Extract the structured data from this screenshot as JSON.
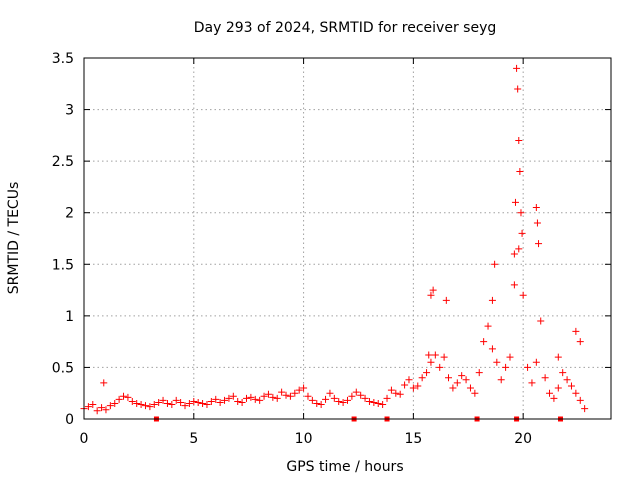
{
  "chart_data": {
    "type": "scatter",
    "title": "Day 293 of 2024, SRMTID for receiver seyg",
    "xlabel": "GPS time / hours",
    "ylabel": "SRMTID / TECUs",
    "xlim": [
      0,
      24
    ],
    "ylim": [
      0,
      3.5
    ],
    "x_ticks": [
      0,
      5,
      10,
      15,
      20
    ],
    "x_tick_labels": [
      "0",
      "5",
      "10",
      "15",
      "20"
    ],
    "y_ticks": [
      0,
      0.5,
      1,
      1.5,
      2,
      2.5,
      3,
      3.5
    ],
    "y_tick_labels": [
      "0",
      "0.5",
      "1",
      "1.5",
      "2",
      "2.5",
      "3",
      "3.5"
    ],
    "grid": true,
    "marker": "+",
    "color": "#ff0000",
    "series": [
      {
        "name": "SRMTID",
        "x": [
          0.0,
          0.2,
          0.4,
          0.6,
          0.8,
          1.0,
          1.2,
          1.4,
          1.6,
          1.8,
          2.0,
          2.2,
          2.4,
          2.6,
          2.8,
          3.0,
          3.2,
          3.4,
          3.6,
          3.8,
          4.0,
          4.2,
          4.4,
          4.6,
          4.8,
          5.0,
          5.2,
          5.4,
          5.6,
          5.8,
          6.0,
          6.2,
          6.4,
          6.6,
          6.8,
          7.0,
          7.2,
          7.4,
          7.6,
          7.8,
          8.0,
          8.2,
          8.4,
          8.6,
          8.8,
          9.0,
          9.2,
          9.4,
          9.6,
          9.8,
          10.0,
          10.2,
          10.4,
          10.6,
          10.8,
          11.0,
          11.2,
          11.4,
          11.6,
          11.8,
          12.0,
          12.2,
          12.4,
          12.6,
          12.8,
          13.0,
          13.2,
          13.4,
          13.6,
          13.8,
          14.0,
          14.2,
          14.4,
          14.6,
          14.8,
          15.0,
          15.2,
          15.4,
          15.6,
          15.8,
          16.0,
          16.2,
          16.4,
          16.6,
          16.8,
          17.0,
          17.2,
          17.4,
          17.6,
          17.8,
          18.0,
          18.2,
          18.4,
          18.6,
          18.8,
          19.0,
          19.2,
          19.4,
          19.6,
          19.8,
          20.0,
          20.2,
          20.4,
          20.6,
          20.8,
          21.0,
          21.2,
          21.4,
          21.6,
          21.8,
          22.0,
          22.2,
          22.4,
          22.6,
          22.8,
          0.9,
          15.7,
          15.8,
          15.9,
          16.5,
          18.6,
          18.7,
          19.6,
          19.65,
          19.7,
          19.75,
          19.8,
          19.85,
          19.9,
          19.95,
          20.6,
          20.65,
          20.7,
          21.6,
          22.4,
          22.6
        ],
        "y": [
          0.1,
          0.12,
          0.14,
          0.08,
          0.11,
          0.09,
          0.13,
          0.15,
          0.19,
          0.22,
          0.21,
          0.17,
          0.15,
          0.14,
          0.13,
          0.12,
          0.14,
          0.16,
          0.18,
          0.15,
          0.14,
          0.18,
          0.16,
          0.13,
          0.15,
          0.17,
          0.16,
          0.15,
          0.14,
          0.17,
          0.19,
          0.16,
          0.18,
          0.2,
          0.22,
          0.17,
          0.16,
          0.2,
          0.21,
          0.19,
          0.18,
          0.22,
          0.24,
          0.21,
          0.2,
          0.26,
          0.23,
          0.22,
          0.25,
          0.28,
          0.3,
          0.22,
          0.18,
          0.15,
          0.14,
          0.19,
          0.25,
          0.2,
          0.17,
          0.16,
          0.18,
          0.22,
          0.26,
          0.23,
          0.2,
          0.17,
          0.16,
          0.15,
          0.14,
          0.2,
          0.28,
          0.25,
          0.24,
          0.33,
          0.38,
          0.3,
          0.32,
          0.4,
          0.45,
          0.55,
          0.62,
          0.5,
          0.6,
          0.4,
          0.3,
          0.35,
          0.42,
          0.38,
          0.3,
          0.25,
          0.45,
          0.75,
          0.9,
          1.15,
          0.55,
          0.38,
          0.5,
          0.6,
          1.3,
          1.65,
          1.2,
          0.5,
          0.35,
          0.55,
          0.95,
          0.4,
          0.25,
          0.2,
          0.3,
          0.45,
          0.38,
          0.32,
          0.25,
          0.18,
          0.1,
          0.35,
          0.62,
          1.2,
          1.25,
          1.15,
          0.68,
          1.5,
          1.6,
          2.1,
          3.4,
          3.2,
          2.7,
          2.4,
          2.0,
          1.8,
          2.05,
          1.9,
          1.7,
          0.6,
          0.85,
          0.75
        ]
      }
    ],
    "baseline_markers": [
      {
        "x": 3.3,
        "y": 0
      },
      {
        "x": 12.3,
        "y": 0
      },
      {
        "x": 13.8,
        "y": 0
      },
      {
        "x": 17.9,
        "y": 0
      },
      {
        "x": 19.7,
        "y": 0
      },
      {
        "x": 21.7,
        "y": 0
      }
    ]
  }
}
